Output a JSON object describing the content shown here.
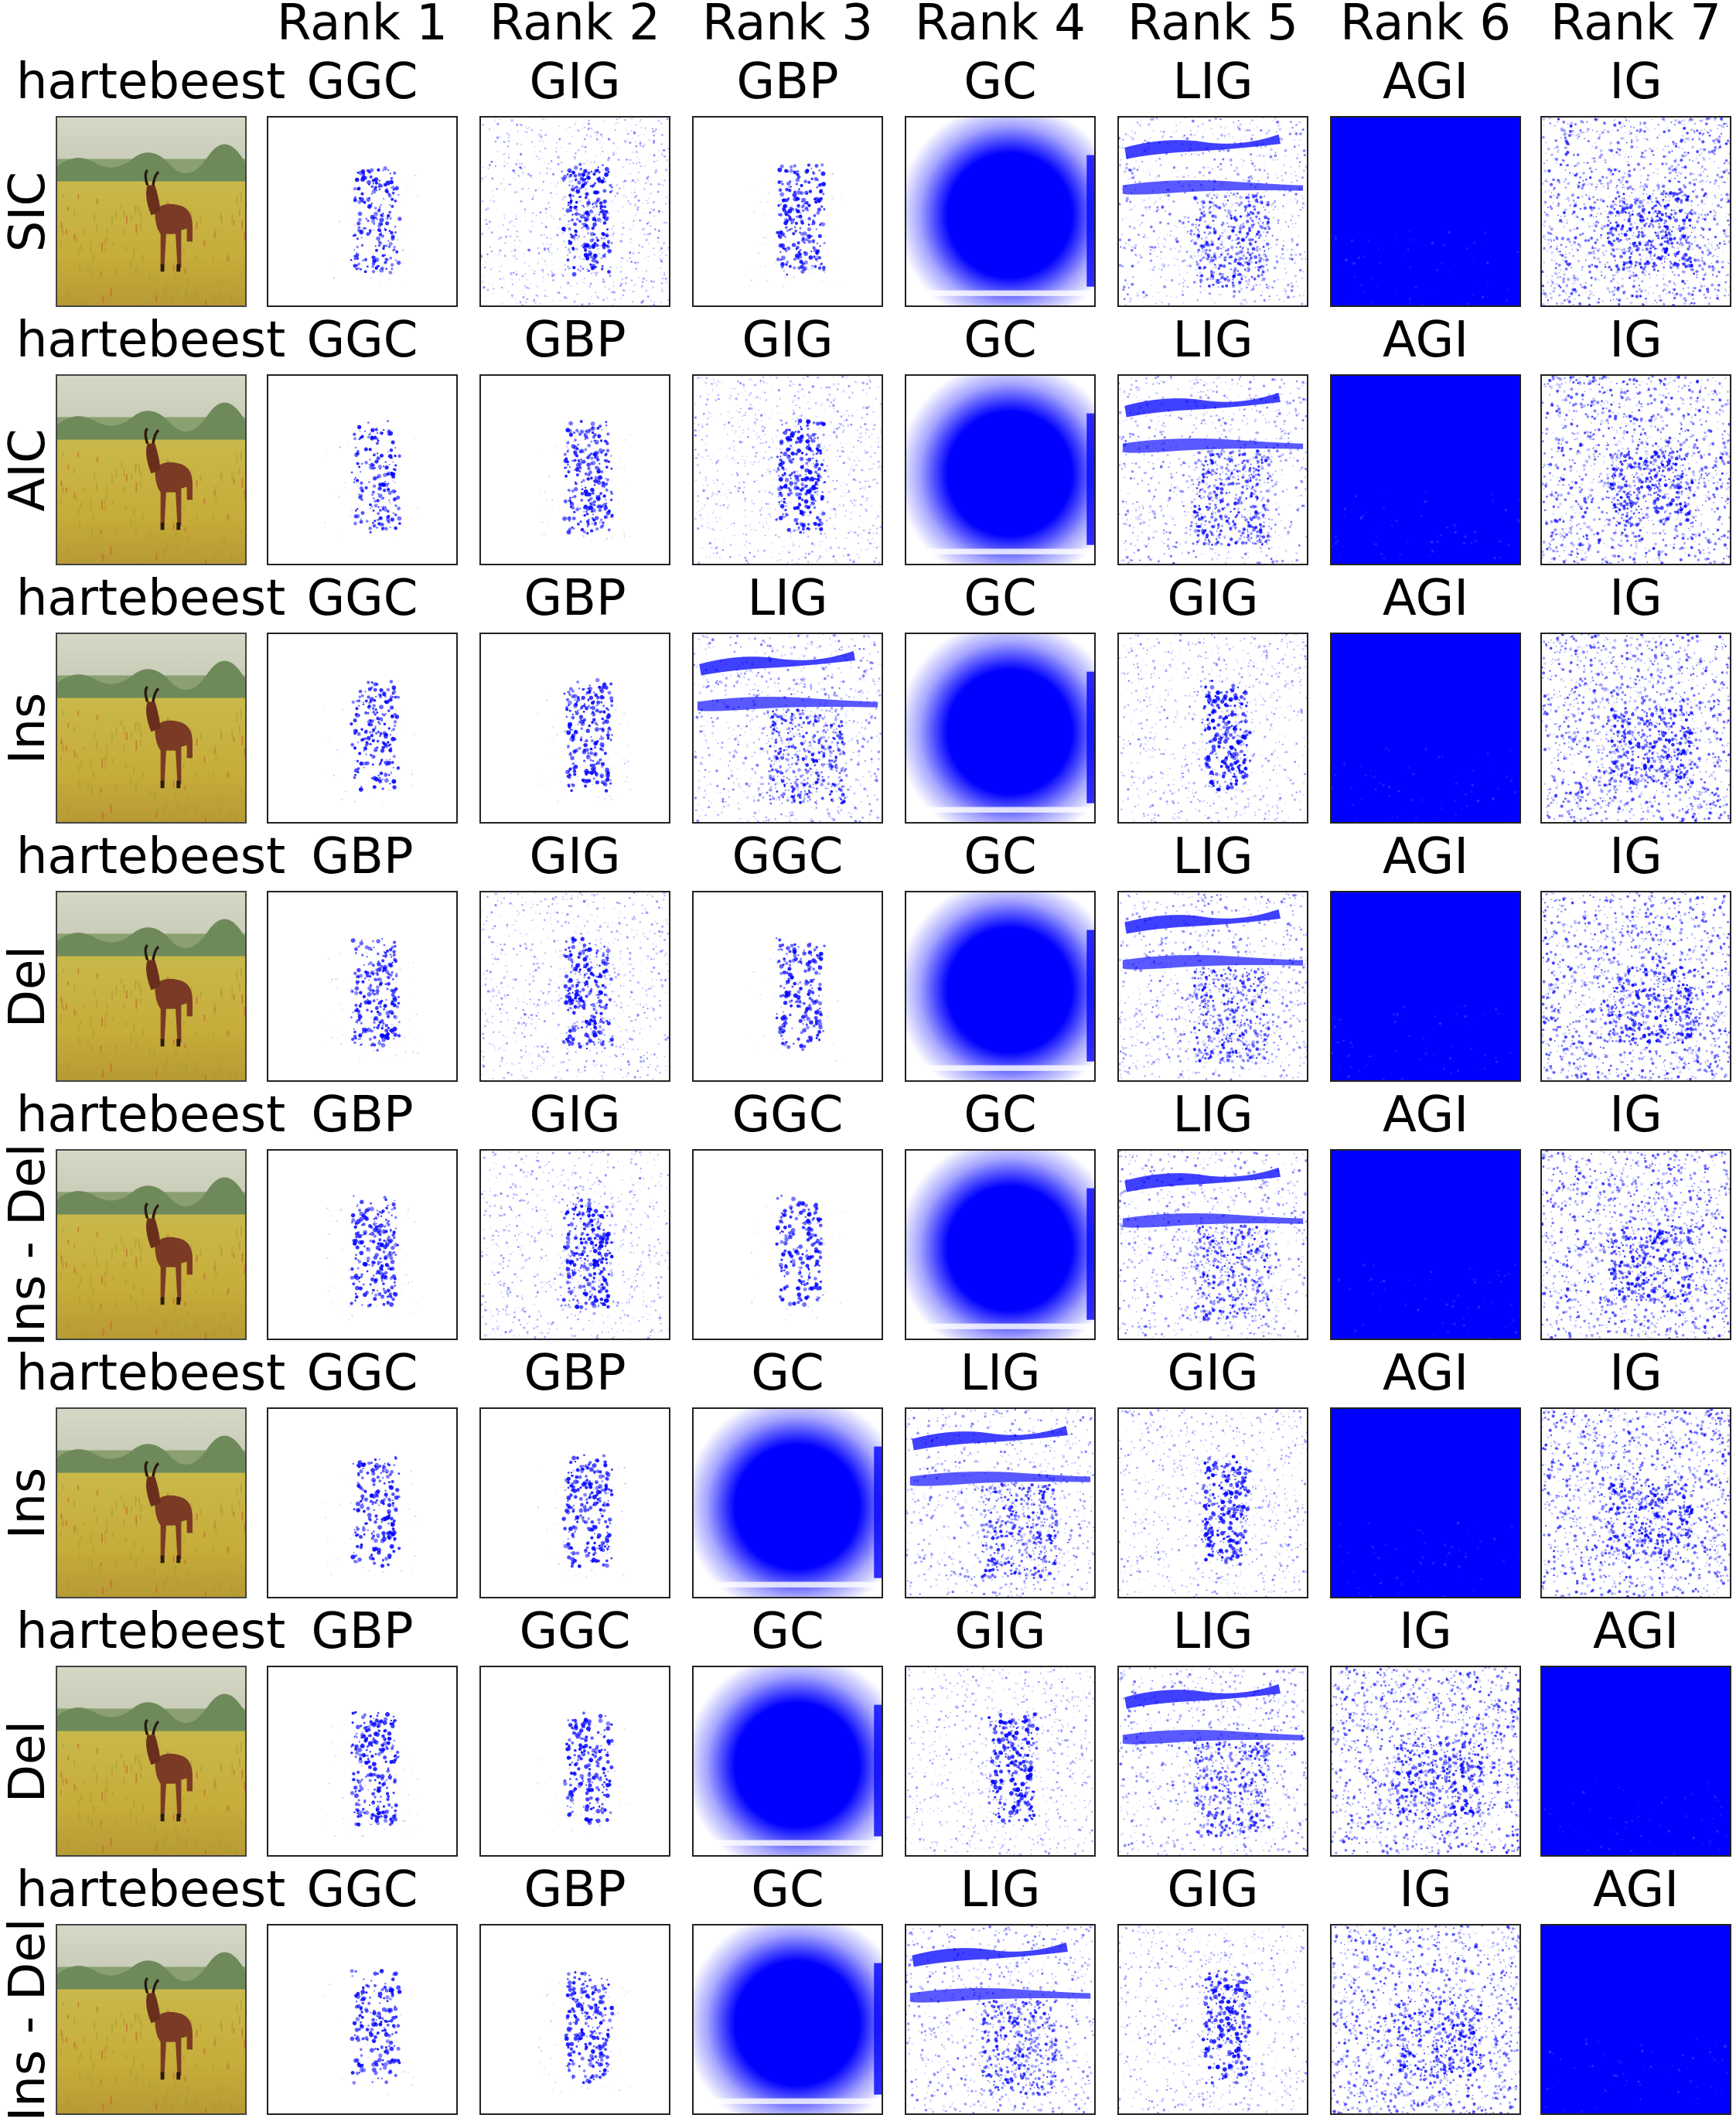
{
  "rank_headers": [
    "Rank 1",
    "Rank 2",
    "Rank 3",
    "Rank 4",
    "Rank 5",
    "Rank 6",
    "Rank 7"
  ],
  "colors": {
    "saliency": "#0000ff",
    "background": "#ffffff",
    "border": "#222222"
  },
  "rows": [
    {
      "class_label": "hartebeest",
      "metric": "SIC",
      "methods": [
        "GGC",
        "GIG",
        "GBP",
        "GC",
        "LIG",
        "AGI",
        "IG"
      ]
    },
    {
      "class_label": "hartebeest",
      "metric": "AIC",
      "methods": [
        "GGC",
        "GBP",
        "GIG",
        "GC",
        "LIG",
        "AGI",
        "IG"
      ]
    },
    {
      "class_label": "hartebeest",
      "metric": "Ins",
      "methods": [
        "GGC",
        "GBP",
        "LIG",
        "GC",
        "GIG",
        "AGI",
        "IG"
      ]
    },
    {
      "class_label": "hartebeest",
      "metric": "Del",
      "methods": [
        "GBP",
        "GIG",
        "GGC",
        "GC",
        "LIG",
        "AGI",
        "IG"
      ]
    },
    {
      "class_label": "hartebeest",
      "metric": "Ins - Del",
      "methods": [
        "GBP",
        "GIG",
        "GGC",
        "GC",
        "LIG",
        "AGI",
        "IG"
      ]
    },
    {
      "class_label": "hartebeest",
      "metric": "Ins",
      "methods": [
        "GGC",
        "GBP",
        "GC",
        "LIG",
        "GIG",
        "AGI",
        "IG"
      ]
    },
    {
      "class_label": "hartebeest",
      "metric": "Del",
      "methods": [
        "GBP",
        "GGC",
        "GC",
        "GIG",
        "LIG",
        "IG",
        "AGI"
      ]
    },
    {
      "class_label": "hartebeest",
      "metric": "Ins - Del",
      "methods": [
        "GGC",
        "GBP",
        "GC",
        "LIG",
        "GIG",
        "IG",
        "AGI"
      ]
    }
  ]
}
